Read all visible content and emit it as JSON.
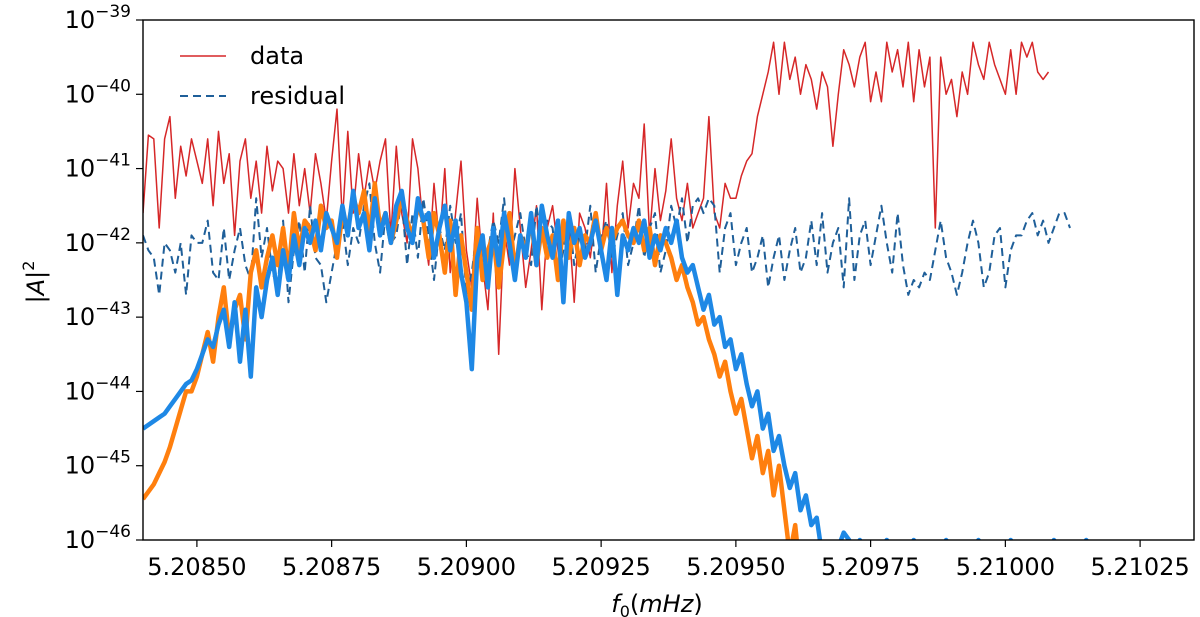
{
  "chart_data": {
    "type": "line",
    "xlabel": "f0(mHz)",
    "ylabel": "|A|^2",
    "y_scale": "log",
    "xlim": [
      5.2084,
      5.21035
    ],
    "ylim_exponent": [
      -46,
      -39
    ],
    "x_ticks": [
      "5.20850",
      "5.20875",
      "5.20900",
      "5.20925",
      "5.20950",
      "5.20975",
      "5.21000",
      "5.21025"
    ],
    "y_ticks": [
      "10^-46",
      "10^-45",
      "10^-44",
      "10^-43",
      "10^-42",
      "10^-41",
      "10^-40",
      "10^-39"
    ],
    "grid": false,
    "legend_position": "top-left",
    "x_start": 5.2084,
    "x_step": 1e-05,
    "series": [
      {
        "name": "data",
        "color": "#d62728",
        "style": "solid",
        "log10_values": [
          -41.6,
          -40.55,
          -40.6,
          -41.8,
          -40.6,
          -40.3,
          -41.4,
          -40.7,
          -41.1,
          -40.6,
          -40.9,
          -41.2,
          -40.6,
          -41.5,
          -40.5,
          -41.2,
          -40.8,
          -41.9,
          -40.9,
          -40.6,
          -41.4,
          -40.9,
          -41.6,
          -40.7,
          -41.3,
          -40.9,
          -41.0,
          -41.6,
          -40.8,
          -41.5,
          -41.0,
          -41.6,
          -40.8,
          -41.2,
          -41.7,
          -40.9,
          -40.2,
          -41.7,
          -40.5,
          -41.6,
          -40.8,
          -41.4,
          -40.9,
          -41.3,
          -40.9,
          -40.6,
          -41.9,
          -40.7,
          -41.6,
          -42.0,
          -40.6,
          -41.0,
          -41.8,
          -42.3,
          -41.2,
          -42.0,
          -41.0,
          -42.4,
          -41.6,
          -40.9,
          -42.1,
          -42.6,
          -41.4,
          -42.3,
          -42.9,
          -41.6,
          -43.5,
          -41.8,
          -42.3,
          -41.0,
          -41.8,
          -42.6,
          -42.1,
          -41.5,
          -42.9,
          -41.8,
          -41.5,
          -42.1,
          -42.7,
          -41.7,
          -42.8,
          -41.6,
          -41.8,
          -42.2,
          -41.6,
          -42.2,
          -41.2,
          -42.4,
          -41.5,
          -40.9,
          -41.8,
          -41.2,
          -41.4,
          -40.4,
          -41.9,
          -41.0,
          -41.7,
          -41.3,
          -40.6,
          -41.4,
          -41.7,
          -41.2,
          -41.8,
          -41.6,
          -41.4,
          -40.3,
          -41.6,
          -41.8,
          -41.2,
          -41.4,
          -41.4,
          -41.1,
          -40.9,
          -40.8,
          -40.3,
          -40.0,
          -39.7,
          -39.3,
          -40.0,
          -39.3,
          -39.8,
          -39.5,
          -40.0,
          -39.6,
          -39.8,
          -40.2,
          -39.7,
          -39.9,
          -40.7,
          -40.0,
          -39.4,
          -39.6,
          -39.9,
          -39.5,
          -39.3,
          -40.1,
          -39.7,
          -40.1,
          -39.3,
          -39.7,
          -39.4,
          -39.9,
          -39.3,
          -40.1,
          -39.4,
          -39.9,
          -39.5,
          -41.8,
          -39.5,
          -40.0,
          -39.8,
          -40.3,
          -39.7,
          -40.0,
          -39.3,
          -39.6,
          -39.8,
          -39.3,
          -39.6,
          -39.8,
          -40.0,
          -39.4,
          -40.0,
          -39.3,
          -39.5,
          -39.3,
          -39.7,
          -39.8,
          -39.7
        ]
      },
      {
        "name": "residual",
        "color": "#1f5f99",
        "style": "dashed",
        "log10_values": [
          -41.9,
          -42.1,
          -42.2,
          -42.7,
          -42.0,
          -42.1,
          -42.4,
          -42.0,
          -42.7,
          -41.9,
          -42.0,
          -42.0,
          -41.7,
          -42.4,
          -42.5,
          -41.8,
          -42.5,
          -42.1,
          -41.8,
          -42.3,
          -42.5,
          -41.4,
          -42.2,
          -41.8,
          -42.4,
          -42.6,
          -41.7,
          -42.8,
          -42.1,
          -41.7,
          -42.4,
          -41.5,
          -42.2,
          -42.3,
          -42.8,
          -42.4,
          -42.0,
          -41.7,
          -42.3,
          -41.8,
          -42.0,
          -41.5,
          -41.2,
          -42.0,
          -42.4,
          -41.6,
          -42.0,
          -41.9,
          -41.4,
          -42.3,
          -41.6,
          -42.2,
          -41.4,
          -41.9,
          -42.5,
          -41.8,
          -42.1,
          -41.5,
          -42.0,
          -41.6,
          -42.7,
          -42.4,
          -41.8,
          -42.5,
          -42.1,
          -41.7,
          -42.0,
          -41.4,
          -42.2,
          -41.9,
          -41.6,
          -42.1,
          -42.3,
          -41.5,
          -42.0,
          -41.7,
          -41.8,
          -42.5,
          -42.1,
          -41.6,
          -42.3,
          -41.9,
          -42.1,
          -41.5,
          -42.4,
          -41.9,
          -41.7,
          -42.2,
          -41.9,
          -41.6,
          -42.3,
          -42.0,
          -41.5,
          -42.2,
          -41.8,
          -41.6,
          -42.4,
          -42.1,
          -41.5,
          -41.8,
          -41.4,
          -42.0,
          -41.5,
          -41.4,
          -41.6,
          -41.4,
          -41.5,
          -42.4,
          -41.8,
          -41.6,
          -42.3,
          -42.0,
          -41.8,
          -42.4,
          -42.2,
          -41.9,
          -42.6,
          -42.2,
          -41.9,
          -42.5,
          -42.1,
          -41.8,
          -42.4,
          -42.2,
          -41.7,
          -42.3,
          -41.6,
          -42.4,
          -42.0,
          -41.8,
          -42.6,
          -41.4,
          -42.5,
          -41.9,
          -41.7,
          -42.3,
          -41.9,
          -41.5,
          -42.0,
          -42.4,
          -41.6,
          -42.3,
          -42.7,
          -42.5,
          -42.6,
          -42.4,
          -42.5,
          -42.1,
          -41.7,
          -42.2,
          -42.4,
          -42.7,
          -42.4,
          -42.0,
          -41.7,
          -42.0,
          -42.6,
          -42.4,
          -41.9,
          -41.8,
          -42.6,
          -42.1,
          -41.9,
          -41.9,
          -41.7,
          -41.6,
          -41.9,
          -41.7,
          -42.0,
          -41.8,
          -41.6,
          -41.6,
          -41.8
        ]
      },
      {
        "name": "",
        "color": "#ff7f0e",
        "style": "solid-thick",
        "log10_values": [
          -45.45,
          -45.35,
          -45.25,
          -45.1,
          -44.95,
          -44.75,
          -44.5,
          -44.25,
          -44.0,
          -44.0,
          -43.8,
          -43.5,
          -43.2,
          -43.6,
          -43.0,
          -42.6,
          -43.3,
          -42.9,
          -42.7,
          -43.3,
          -42.4,
          -42.1,
          -42.6,
          -42.2,
          -41.9,
          -42.3,
          -41.8,
          -42.4,
          -41.6,
          -42.1,
          -41.7,
          -41.8,
          -42.1,
          -41.5,
          -41.8,
          -41.7,
          -42.2,
          -41.6,
          -41.8,
          -41.4,
          -41.6,
          -41.3,
          -41.9,
          -41.2,
          -41.8,
          -41.6,
          -42.0,
          -41.7,
          -41.4,
          -41.7,
          -41.9,
          -41.5,
          -41.7,
          -42.2,
          -41.6,
          -41.9,
          -42.4,
          -41.7,
          -42.7,
          -41.9,
          -42.4,
          -42.9,
          -41.8,
          -42.5,
          -42.1,
          -41.9,
          -42.6,
          -42.0,
          -41.6,
          -42.4,
          -41.9,
          -42.1,
          -41.7,
          -42.3,
          -41.8,
          -42.2,
          -41.9,
          -42.5,
          -41.7,
          -42.2,
          -41.8,
          -42.3,
          -41.9,
          -42.0,
          -41.6,
          -42.1,
          -41.8,
          -42.0,
          -41.8,
          -41.7,
          -41.9,
          -42.0,
          -41.7,
          -42.1,
          -41.8,
          -42.3,
          -41.9,
          -42.0,
          -42.2,
          -42.5,
          -42.3,
          -42.6,
          -42.8,
          -43.1,
          -43.0,
          -43.3,
          -43.5,
          -43.8,
          -43.6,
          -44.0,
          -44.3,
          -44.1,
          -44.5,
          -44.9,
          -44.6,
          -45.1,
          -44.8,
          -45.4,
          -45.0,
          -45.6,
          -46.2,
          -45.8,
          -46.5,
          -46.1,
          -46.8,
          -46.5,
          -47.0,
          -46.8,
          -47.0,
          -47.0,
          -47.0,
          -47.0,
          -47.0,
          -47.0,
          -47.0,
          -47.0,
          -47.0,
          -47.0,
          -47.0,
          -47.0,
          -47.0,
          -47.0,
          -47.0,
          -47.0,
          -47.0,
          -47.0,
          -47.0,
          -47.0,
          -47.0,
          -47.0,
          -47.0,
          -47.0,
          -47.0,
          -47.0,
          -47.0,
          -47.0,
          -47.0,
          -47.0,
          -47.0,
          -47.0,
          -47.0,
          -47.0,
          -47.0,
          -47.0,
          -47.0,
          -47.0,
          -47.0,
          -47.0,
          -47.0,
          -47.0,
          -47.0,
          -47.0,
          -47.0,
          -47.0,
          -47.0,
          -47.0,
          -47.0,
          -47.0,
          -47.0,
          -47.0,
          -47.0,
          -47.0,
          -47.0
        ]
      },
      {
        "name": "",
        "color": "#1e88e5",
        "style": "solid-thick",
        "log10_values": [
          -44.5,
          -44.45,
          -44.4,
          -44.35,
          -44.3,
          -44.2,
          -44.1,
          -44.0,
          -43.9,
          -43.85,
          -43.7,
          -43.5,
          -43.3,
          -43.4,
          -43.1,
          -42.9,
          -43.4,
          -42.8,
          -43.6,
          -42.9,
          -43.8,
          -42.6,
          -43.0,
          -42.5,
          -42.2,
          -42.7,
          -42.1,
          -42.5,
          -41.9,
          -42.3,
          -41.8,
          -42.0,
          -41.7,
          -42.1,
          -41.6,
          -41.8,
          -42.0,
          -41.5,
          -41.9,
          -41.3,
          -41.8,
          -41.6,
          -42.1,
          -41.4,
          -41.9,
          -41.6,
          -42.0,
          -41.5,
          -41.3,
          -41.8,
          -42.0,
          -41.4,
          -41.7,
          -41.6,
          -42.2,
          -41.8,
          -41.5,
          -42.1,
          -41.7,
          -42.4,
          -42.8,
          -43.7,
          -42.2,
          -41.9,
          -42.6,
          -41.8,
          -42.3,
          -41.6,
          -42.0,
          -42.5,
          -41.9,
          -42.2,
          -41.6,
          -42.3,
          -41.5,
          -41.9,
          -42.2,
          -41.7,
          -42.8,
          -41.6,
          -42.0,
          -41.8,
          -42.2,
          -42.0,
          -41.7,
          -42.1,
          -42.5,
          -41.8,
          -42.7,
          -41.9,
          -42.1,
          -41.8,
          -42.0,
          -41.7,
          -42.2,
          -41.9,
          -42.1,
          -41.8,
          -42.0,
          -41.7,
          -42.2,
          -42.4,
          -42.3,
          -42.6,
          -42.9,
          -42.7,
          -43.1,
          -43.0,
          -43.4,
          -43.3,
          -43.7,
          -43.5,
          -43.9,
          -44.2,
          -44.0,
          -44.5,
          -44.3,
          -44.8,
          -44.6,
          -45.0,
          -45.3,
          -45.1,
          -45.6,
          -45.4,
          -45.8,
          -45.7,
          -46.2,
          -46.1,
          -46.3,
          -46.1,
          -45.9,
          -46.0,
          -46.2,
          -46.0,
          -46.1,
          -46.2,
          -46.3,
          -46.1,
          -46.0,
          -46.2,
          -46.1,
          -46.3,
          -46.2,
          -46.0,
          -46.1,
          -46.3,
          -46.2,
          -46.1,
          -46.2,
          -46.0,
          -46.1,
          -46.2,
          -46.3,
          -46.1,
          -46.2,
          -46.0,
          -46.1,
          -46.2,
          -46.3,
          -46.1,
          -46.2,
          -46.0,
          -46.1,
          -46.2,
          -46.1,
          -46.3,
          -46.2,
          -46.1,
          -46.2,
          -46.0,
          -46.1,
          -46.3,
          -46.2,
          -46.1,
          -46.2,
          -46.0,
          -46.1,
          -46.2
        ]
      }
    ]
  }
}
